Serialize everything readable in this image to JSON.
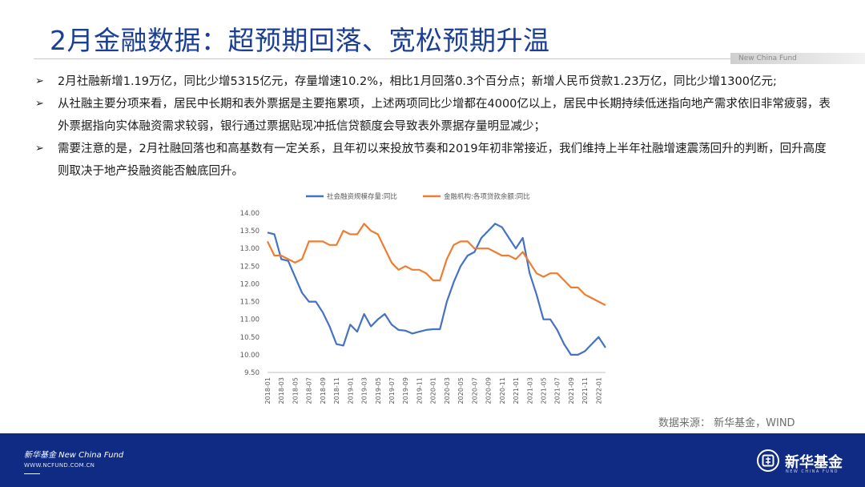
{
  "slide": {
    "title": "2月金融数据：超预期回落、宽松预期升温",
    "brand_tag": "New China Fund",
    "bullets": [
      "2月社融新增1.19万亿，同比少增5315亿元，存量增速10.2%，相比1月回落0.3个百分点；新增人民币贷款1.23万亿，同比少增1300亿元;",
      "从社融主要分项来看，居民中长期和表外票据是主要拖累项，上述两项同比少增都在4000亿以上，居民中长期持续低迷指向地产需求依旧非常疲弱，表外票据指向实体融资需求较弱，银行通过票据贴现冲抵信贷额度会导致表外票据存量明显减少；",
      "需要注意的是，2月社融回落也和高基数有一定关系，且年初以来投放节奏和2019年初非常接近，我们维持上半年社融增速震荡回升的判断，回升高度则取决于地产投融资能否触底回升。"
    ],
    "bullet_mark": "➢",
    "source": "数据来源：  新华基金，WIND"
  },
  "footer": {
    "brand": "新华基金 New China Fund",
    "url": "WWW.NCFUND.COM.CN",
    "logo_text": "新华基金",
    "logo_sub": "NEW CHINA FUND",
    "color": "#0f2b83"
  },
  "chart_data": {
    "type": "line",
    "x": [
      "2018-01",
      "2018-02",
      "2018-03",
      "2018-04",
      "2018-05",
      "2018-06",
      "2018-07",
      "2018-08",
      "2018-09",
      "2018-10",
      "2018-11",
      "2018-12",
      "2019-01",
      "2019-02",
      "2019-03",
      "2019-04",
      "2019-05",
      "2019-06",
      "2019-07",
      "2019-08",
      "2019-09",
      "2019-10",
      "2019-11",
      "2019-12",
      "2020-01",
      "2020-02",
      "2020-03",
      "2020-04",
      "2020-05",
      "2020-06",
      "2020-07",
      "2020-08",
      "2020-09",
      "2020-10",
      "2020-11",
      "2020-12",
      "2021-01",
      "2021-02",
      "2021-03",
      "2021-04",
      "2021-05",
      "2021-06",
      "2021-07",
      "2021-08",
      "2021-09",
      "2021-10",
      "2021-11",
      "2021-12",
      "2022-01",
      "2022-02"
    ],
    "tick_labels": [
      "2018-01",
      "2018-03",
      "2018-05",
      "2018-07",
      "2018-09",
      "2018-11",
      "2019-01",
      "2019-03",
      "2019-05",
      "2019-07",
      "2019-09",
      "2019-11",
      "2020-01",
      "2020-03",
      "2020-05",
      "2020-07",
      "2020-09",
      "2020-11",
      "2021-01",
      "2021-03",
      "2021-05",
      "2021-07",
      "2021-09",
      "2021-11",
      "2022-01"
    ],
    "series": [
      {
        "name": "社会融资规模存量:同比",
        "color": "#4472c4",
        "values": [
          13.45,
          13.4,
          12.7,
          12.65,
          12.2,
          11.75,
          11.5,
          11.5,
          11.2,
          10.8,
          10.3,
          10.26,
          10.85,
          10.65,
          11.15,
          10.8,
          11.0,
          11.15,
          10.85,
          10.7,
          10.68,
          10.6,
          10.65,
          10.7,
          10.72,
          10.72,
          11.5,
          12.05,
          12.5,
          12.8,
          12.9,
          13.3,
          13.5,
          13.7,
          13.6,
          13.3,
          13.0,
          13.3,
          12.3,
          11.7,
          11.0,
          11.0,
          10.7,
          10.3,
          10.0,
          10.0,
          10.1,
          10.3,
          10.5,
          10.2
        ]
      },
      {
        "name": "金融机构:各项贷款余额:同比",
        "color": "#ed7d31",
        "values": [
          13.2,
          12.8,
          12.8,
          12.7,
          12.6,
          12.7,
          13.2,
          13.2,
          13.2,
          13.1,
          13.1,
          13.5,
          13.4,
          13.4,
          13.7,
          13.5,
          13.4,
          13.0,
          12.6,
          12.4,
          12.5,
          12.4,
          12.4,
          12.3,
          12.1,
          12.1,
          12.7,
          13.1,
          13.2,
          13.2,
          13.0,
          13.0,
          13.0,
          12.9,
          12.8,
          12.8,
          12.7,
          12.9,
          12.6,
          12.3,
          12.2,
          12.3,
          12.3,
          12.1,
          11.9,
          11.9,
          11.7,
          11.6,
          11.5,
          11.4
        ]
      }
    ],
    "y_ticks": [
      "14.00",
      "13.50",
      "13.00",
      "12.50",
      "12.00",
      "11.50",
      "11.00",
      "10.50",
      "10.00",
      "9.50"
    ],
    "ylim": [
      9.5,
      14.0
    ],
    "grid": false,
    "legend": "top"
  }
}
